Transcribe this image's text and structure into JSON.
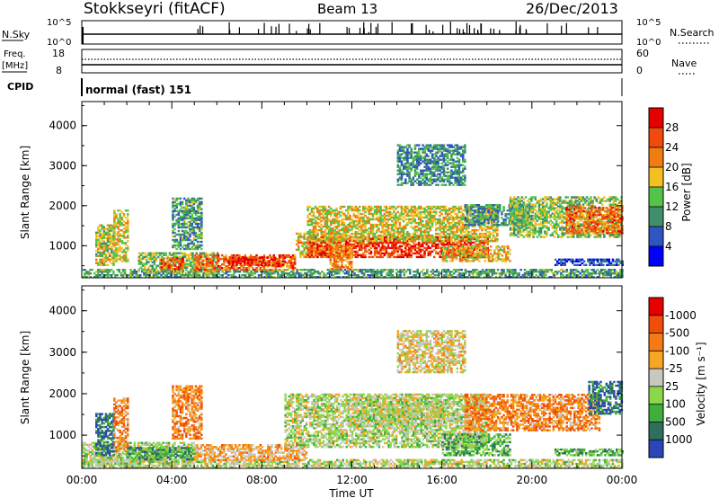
{
  "header": {
    "station": "Stokkseyri (fitACF)",
    "beam": "Beam 13",
    "date": "26/Dec/2013"
  },
  "top_panels": {
    "nsky_label": "N.Sky",
    "nsky_ticks": [
      "10^5",
      "10^0"
    ],
    "nsearch_label": "N.Search",
    "nsearch_ticks": [
      "10^5",
      "10^0"
    ],
    "freq_label_1": "Freq.",
    "freq_label_2": "[MHz]",
    "freq_ticks": [
      "18",
      "8"
    ],
    "nave_label": "Nave",
    "nave_ticks": [
      "60",
      "0"
    ],
    "cpid_label": "CPID",
    "cpid_text": "normal (fast) 151"
  },
  "chart_data": [
    {
      "type": "heatmap",
      "title": "Power",
      "ylabel": "Slant Range [km]",
      "xlabel": "Time UT",
      "ylim": [
        200,
        4600
      ],
      "yticks": [
        "1000",
        "2000",
        "3000",
        "4000"
      ],
      "xticks": [
        "00:00",
        "04:00",
        "08:00",
        "12:00",
        "16:00",
        "20:00",
        "00:00"
      ],
      "colorbar": {
        "label": "Power [dB]",
        "ticks": [
          "4",
          "8",
          "12",
          "16",
          "20",
          "24",
          "28"
        ],
        "colors": [
          "#0000ff",
          "#2f55c0",
          "#3f8f6a",
          "#55c24a",
          "#f2c021",
          "#f07c12",
          "#f04a0e",
          "#e60000"
        ]
      },
      "regions": [
        {
          "t": [
            0.0,
            24.0
          ],
          "r": [
            200,
            420
          ],
          "level": 0.35
        },
        {
          "t": [
            0.6,
            1.4
          ],
          "r": [
            500,
            1500
          ],
          "level": 0.5
        },
        {
          "t": [
            1.4,
            2.0
          ],
          "r": [
            600,
            1900
          ],
          "level": 0.55
        },
        {
          "t": [
            2.5,
            6.0
          ],
          "r": [
            300,
            800
          ],
          "level": 0.45
        },
        {
          "t": [
            3.5,
            4.5
          ],
          "r": [
            400,
            700
          ],
          "level": 0.8
        },
        {
          "t": [
            4.0,
            5.3
          ],
          "r": [
            900,
            2200
          ],
          "level": 0.35
        },
        {
          "t": [
            5.0,
            9.5
          ],
          "r": [
            380,
            760
          ],
          "level": 0.75
        },
        {
          "t": [
            6.5,
            9.0
          ],
          "r": [
            500,
            700
          ],
          "level": 0.9
        },
        {
          "t": [
            9.5,
            11.5
          ],
          "r": [
            700,
            1300
          ],
          "level": 0.6
        },
        {
          "t": [
            10.0,
            18.0
          ],
          "r": [
            700,
            1200
          ],
          "level": 0.85
        },
        {
          "t": [
            10.0,
            18.5
          ],
          "r": [
            1100,
            2000
          ],
          "level": 0.55
        },
        {
          "t": [
            11.0,
            12.0
          ],
          "r": [
            400,
            1000
          ],
          "level": 0.7
        },
        {
          "t": [
            14.0,
            17.0
          ],
          "r": [
            2500,
            3500
          ],
          "level": 0.3
        },
        {
          "t": [
            16.0,
            19.0
          ],
          "r": [
            600,
            1000
          ],
          "level": 0.6
        },
        {
          "t": [
            17.0,
            20.0
          ],
          "r": [
            1500,
            2000
          ],
          "level": 0.3
        },
        {
          "t": [
            19.0,
            24.0
          ],
          "r": [
            1200,
            2200
          ],
          "level": 0.45
        },
        {
          "t": [
            21.5,
            24.0
          ],
          "r": [
            1300,
            2000
          ],
          "level": 0.75
        },
        {
          "t": [
            21.0,
            24.0
          ],
          "r": [
            500,
            650
          ],
          "level": 0.2
        }
      ]
    },
    {
      "type": "heatmap",
      "title": "Velocity",
      "ylabel": "Slant Range [km]",
      "xlabel": "Time UT",
      "ylim": [
        200,
        4600
      ],
      "yticks": [
        "1000",
        "2000",
        "3000",
        "4000"
      ],
      "xticks": [
        "00:00",
        "04:00",
        "08:00",
        "12:00",
        "16:00",
        "20:00",
        "00:00"
      ],
      "colorbar": {
        "label": "Velocity [m s⁻¹]",
        "ticks": [
          "1000",
          "500",
          "100",
          "25",
          "-25",
          "-100",
          "-500",
          "-1000"
        ],
        "colors": [
          "#2a46b8",
          "#2f6f5f",
          "#3fae3a",
          "#88d84a",
          "#c8c8c0",
          "#f5a623",
          "#f57a14",
          "#f04c0a",
          "#e60000"
        ]
      },
      "regions": [
        {
          "t": [
            0.0,
            24.0
          ],
          "r": [
            200,
            420
          ],
          "level": 0.45
        },
        {
          "t": [
            0.0,
            5.0
          ],
          "r": [
            300,
            800
          ],
          "level": 0.45
        },
        {
          "t": [
            0.6,
            1.4
          ],
          "r": [
            500,
            1500
          ],
          "level": 0.15
        },
        {
          "t": [
            1.4,
            2.0
          ],
          "r": [
            600,
            1900
          ],
          "level": 0.7
        },
        {
          "t": [
            2.0,
            5.0
          ],
          "r": [
            400,
            700
          ],
          "level": 0.25
        },
        {
          "t": [
            4.0,
            5.3
          ],
          "r": [
            900,
            2200
          ],
          "level": 0.7
        },
        {
          "t": [
            5.0,
            10.0
          ],
          "r": [
            380,
            760
          ],
          "level": 0.62
        },
        {
          "t": [
            9.0,
            18.0
          ],
          "r": [
            700,
            2000
          ],
          "level": 0.45
        },
        {
          "t": [
            12.0,
            16.0
          ],
          "r": [
            1200,
            1900
          ],
          "level": 0.45
        },
        {
          "t": [
            14.0,
            17.0
          ],
          "r": [
            2500,
            3500
          ],
          "level": 0.55
        },
        {
          "t": [
            16.0,
            19.0
          ],
          "r": [
            500,
            1000
          ],
          "level": 0.3
        },
        {
          "t": [
            17.0,
            23.0
          ],
          "r": [
            1100,
            2000
          ],
          "level": 0.7
        },
        {
          "t": [
            22.5,
            24.0
          ],
          "r": [
            1500,
            2300
          ],
          "level": 0.15
        },
        {
          "t": [
            21.0,
            24.0
          ],
          "r": [
            500,
            650
          ],
          "level": 0.3
        }
      ]
    }
  ]
}
